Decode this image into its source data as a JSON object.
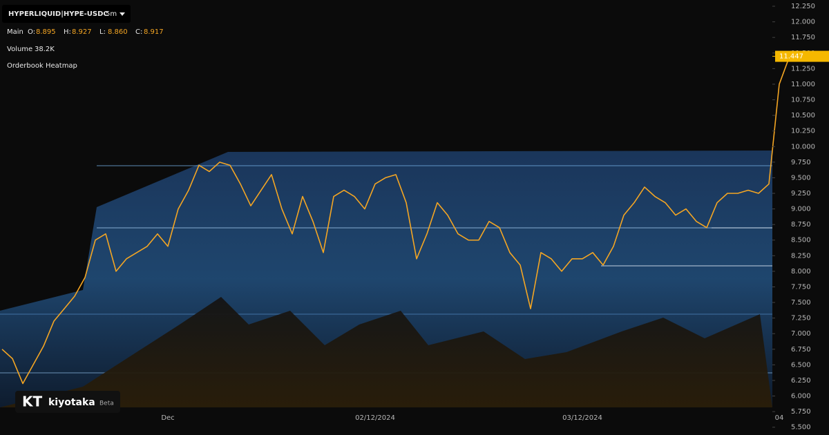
{
  "chart_data": {
    "type": "line",
    "title": "HYPERLIQUID|HYPE-USDC",
    "interval": "5m",
    "legend_label": "Main",
    "ohlc": [
      {
        "label": "O:",
        "value": "8.895"
      },
      {
        "label": "H:",
        "value": "8.927"
      },
      {
        "label": "L:",
        "value": "8.860"
      },
      {
        "label": "C:",
        "value": "8.917"
      }
    ],
    "volume_label": "Volume",
    "volume_value": "38.2K",
    "heatmap_label": "Orderbook Heatmap",
    "brand": "kiyotaka",
    "brand_tag": "Beta",
    "logo": "KT",
    "last_price": {
      "value": 11.447,
      "label": "11.447"
    },
    "categories": [
      null,
      null,
      null,
      null,
      null,
      null,
      null,
      null,
      null,
      null,
      null,
      null,
      null,
      null,
      null,
      null,
      "Dec",
      null,
      null,
      null,
      null,
      null,
      null,
      null,
      null,
      null,
      null,
      null,
      null,
      null,
      null,
      null,
      null,
      null,
      null,
      null,
      "02/12/2024",
      null,
      null,
      null,
      null,
      null,
      null,
      null,
      null,
      null,
      null,
      null,
      null,
      null,
      null,
      null,
      null,
      null,
      null,
      null,
      "03/12/2024",
      null,
      null,
      null,
      null,
      null,
      null,
      null,
      null,
      null,
      null,
      null,
      null,
      null,
      null,
      null,
      null,
      null,
      null,
      "04",
      null
    ],
    "series": [
      {
        "name": "HYPE-USDC",
        "color": "#f5a623",
        "values": [
          6.75,
          6.6,
          6.2,
          6.5,
          6.8,
          7.2,
          7.4,
          7.6,
          7.9,
          8.5,
          8.6,
          8.0,
          8.2,
          8.3,
          8.4,
          8.6,
          8.4,
          9.0,
          9.3,
          9.7,
          9.6,
          9.75,
          9.7,
          9.4,
          9.05,
          9.3,
          9.55,
          9.0,
          8.6,
          9.2,
          8.8,
          8.3,
          9.2,
          9.3,
          9.2,
          9.0,
          9.4,
          9.5,
          9.55,
          9.1,
          8.2,
          8.6,
          9.1,
          8.9,
          8.6,
          8.5,
          8.5,
          8.8,
          8.7,
          8.3,
          8.1,
          7.4,
          8.3,
          8.2,
          8.0,
          8.2,
          8.2,
          8.3,
          8.1,
          8.4,
          8.9,
          9.1,
          9.35,
          9.2,
          9.1,
          8.9,
          9.0,
          8.8,
          8.7,
          9.1,
          9.25,
          9.25,
          9.3,
          9.25,
          9.4,
          11.0,
          11.45
        ]
      }
    ],
    "ylim": [
      5.375,
      12.35
    ],
    "yticks": [
      {
        "value": 5.5,
        "label": "5.500"
      },
      {
        "value": 5.75,
        "label": "5.750"
      },
      {
        "value": 6,
        "label": "6.000"
      },
      {
        "value": 6.25,
        "label": "6.250"
      },
      {
        "value": 6.5,
        "label": "6.500"
      },
      {
        "value": 6.75,
        "label": "6.750"
      },
      {
        "value": 7,
        "label": "7.000"
      },
      {
        "value": 7.25,
        "label": "7.250"
      },
      {
        "value": 7.5,
        "label": "7.500"
      },
      {
        "value": 7.75,
        "label": "7.750"
      },
      {
        "value": 8,
        "label": "8.000"
      },
      {
        "value": 8.25,
        "label": "8.250"
      },
      {
        "value": 8.5,
        "label": "8.500"
      },
      {
        "value": 8.75,
        "label": "8.750"
      },
      {
        "value": 9,
        "label": "9.000"
      },
      {
        "value": 9.25,
        "label": "9.250"
      },
      {
        "value": 9.5,
        "label": "9.500"
      },
      {
        "value": 9.75,
        "label": "9.750"
      },
      {
        "value": 10,
        "label": "10.000"
      },
      {
        "value": 10.25,
        "label": "10.250"
      },
      {
        "value": 10.5,
        "label": "10.500"
      },
      {
        "value": 10.75,
        "label": "10.750"
      },
      {
        "value": 11,
        "label": "11.000"
      },
      {
        "value": 11.25,
        "label": "11.250"
      },
      {
        "value": 11.5,
        "label": "11.500"
      },
      {
        "value": 11.75,
        "label": "11.750"
      },
      {
        "value": 12,
        "label": "12.000"
      },
      {
        "value": 12.25,
        "label": "12.250"
      }
    ],
    "grid": false
  }
}
